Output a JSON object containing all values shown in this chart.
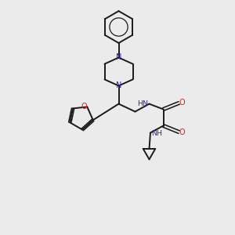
{
  "bg_color": "#ebebeb",
  "bond_color": "#1a1a1a",
  "N_color": "#2222cc",
  "O_color": "#cc2222",
  "figsize": [
    3.0,
    3.0
  ],
  "dpi": 100,
  "xlim": [
    0,
    10
  ],
  "ylim": [
    0,
    10
  ]
}
